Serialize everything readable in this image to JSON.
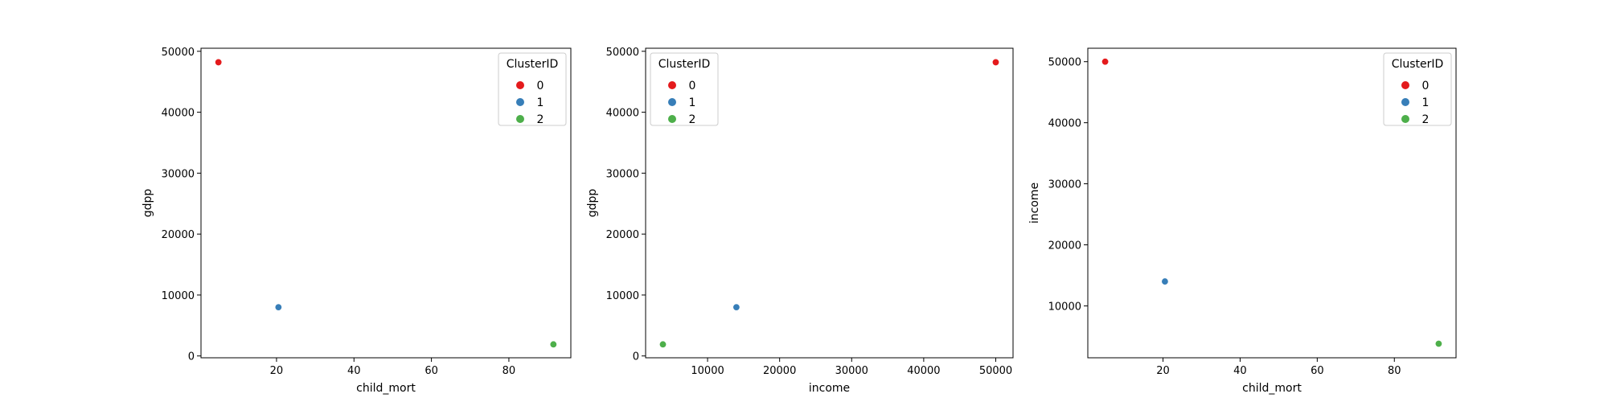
{
  "chart_data": [
    {
      "type": "scatter",
      "xlabel": "child_mort",
      "ylabel": "gdpp",
      "xticks": [
        20,
        40,
        60,
        80
      ],
      "yticks": [
        0,
        10000,
        20000,
        30000,
        40000,
        50000
      ],
      "xlim": [
        0.5,
        96
      ],
      "ylim": [
        -300,
        50500
      ],
      "legend": {
        "title": "ClusterID",
        "placement": "top-right"
      },
      "series": [
        {
          "name": "0",
          "color": "#e41a1c",
          "x": [
            5
          ],
          "y": [
            48200
          ]
        },
        {
          "name": "1",
          "color": "#377eb8",
          "x": [
            20.5
          ],
          "y": [
            8000
          ]
        },
        {
          "name": "2",
          "color": "#4daf4a",
          "x": [
            91.5
          ],
          "y": [
            1900
          ]
        }
      ]
    },
    {
      "type": "scatter",
      "xlabel": "income",
      "ylabel": "gdpp",
      "xticks": [
        10000,
        20000,
        30000,
        40000,
        50000
      ],
      "yticks": [
        0,
        10000,
        20000,
        30000,
        40000,
        50000
      ],
      "xlim": [
        1400,
        52400
      ],
      "ylim": [
        -300,
        50500
      ],
      "legend": {
        "title": "ClusterID",
        "placement": "top-left"
      },
      "series": [
        {
          "name": "0",
          "color": "#e41a1c",
          "x": [
            50000
          ],
          "y": [
            48200
          ]
        },
        {
          "name": "1",
          "color": "#377eb8",
          "x": [
            14000
          ],
          "y": [
            8000
          ]
        },
        {
          "name": "2",
          "color": "#4daf4a",
          "x": [
            3800
          ],
          "y": [
            1900
          ]
        }
      ]
    },
    {
      "type": "scatter",
      "xlabel": "child_mort",
      "ylabel": "income",
      "xticks": [
        20,
        40,
        60,
        80
      ],
      "yticks": [
        10000,
        20000,
        30000,
        40000,
        50000
      ],
      "xlim": [
        0.5,
        96
      ],
      "ylim": [
        1500,
        52200
      ],
      "legend": {
        "title": "ClusterID",
        "placement": "top-right"
      },
      "series": [
        {
          "name": "0",
          "color": "#e41a1c",
          "x": [
            5
          ],
          "y": [
            50000
          ]
        },
        {
          "name": "1",
          "color": "#377eb8",
          "x": [
            20.5
          ],
          "y": [
            14000
          ]
        },
        {
          "name": "2",
          "color": "#4daf4a",
          "x": [
            91.5
          ],
          "y": [
            3800
          ]
        }
      ]
    }
  ]
}
